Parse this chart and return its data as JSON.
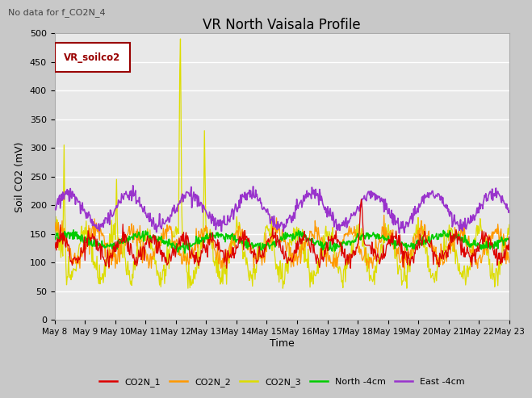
{
  "title": "VR North Vaisala Profile",
  "subtitle": "No data for f_CO2N_4",
  "ylabel": "Soil CO2 (mV)",
  "xlabel": "Time",
  "legend_label": "VR_soilco2",
  "ylim": [
    0,
    500
  ],
  "x_tick_labels": [
    "May 8",
    "May 9",
    "May 10",
    "May 11",
    "May 12",
    "May 13",
    "May 14",
    "May 15",
    "May 16",
    "May 17",
    "May 18",
    "May 19",
    "May 20",
    "May 21",
    "May 22",
    "May 23"
  ],
  "series_colors": {
    "CO2N_1": "#dd0000",
    "CO2N_2": "#ff9900",
    "CO2N_3": "#dddd00",
    "North_4cm": "#00cc00",
    "East_4cm": "#9933cc"
  },
  "fig_bg": "#c8c8c8",
  "plot_bg": "#e8e8e8",
  "grid_color": "#ffffff"
}
